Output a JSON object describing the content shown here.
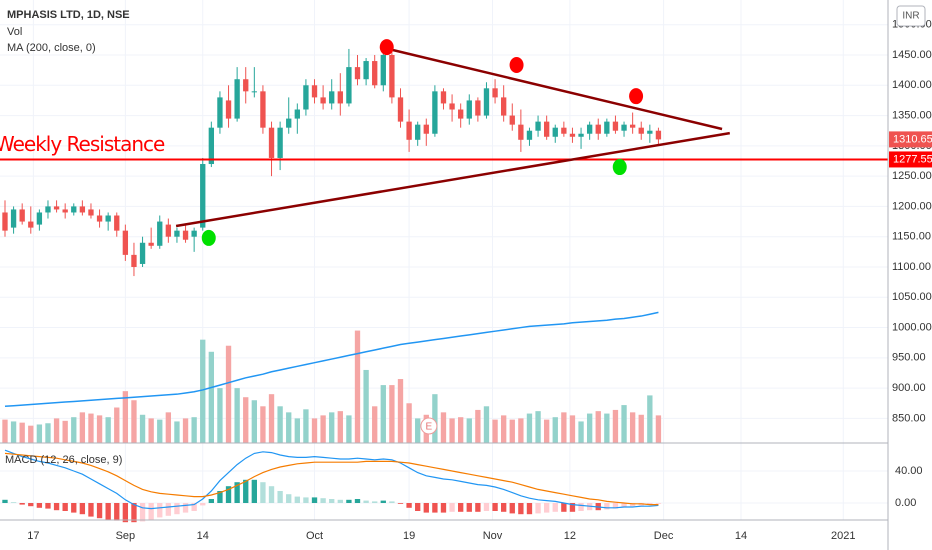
{
  "chart_data": {
    "type": "candlestick",
    "title": "MPHASIS LTD, 1D, NSE",
    "volume_label": "Vol",
    "ma_label": "MA (200, close, 0)",
    "macd_label": "MACD (12, 26, close, 9)",
    "currency_button": "INR",
    "up_color": "#26a69a",
    "down_color": "#ef5350",
    "volume_up_color": "#93d2cb",
    "volume_down_color": "#f5a5a4",
    "ma_color": "#2196f3",
    "macd_color": "#2196f3",
    "signal_color": "#f57c00",
    "hist_colors": [
      "#26a69a",
      "#b2dfdb",
      "#ef5350",
      "#ffcdd2"
    ],
    "grid": true,
    "xlim": [
      -0.58,
      102.7
    ],
    "xticks": [
      {
        "value": 3.3,
        "label": "17"
      },
      {
        "value": 14,
        "label": "Sep"
      },
      {
        "value": 23,
        "label": "14"
      },
      {
        "value": 36,
        "label": "Oct"
      },
      {
        "value": 47,
        "label": "19"
      },
      {
        "value": 56.7,
        "label": "Nov"
      },
      {
        "value": 65.7,
        "label": "12"
      },
      {
        "value": 76.6,
        "label": "Dec"
      },
      {
        "value": 85.6,
        "label": "14"
      },
      {
        "value": 97.5,
        "label": "2021"
      }
    ],
    "ylim": [
      809.4,
      1540.8
    ],
    "yticks": [
      {
        "value": 850,
        "label": "850.00"
      },
      {
        "value": 900,
        "label": "900.00"
      },
      {
        "value": 950,
        "label": "950.00"
      },
      {
        "value": 1000,
        "label": "1000.00"
      },
      {
        "value": 1050,
        "label": "1050.00"
      },
      {
        "value": 1100,
        "label": "1100.00"
      },
      {
        "value": 1150,
        "label": "1150.00"
      },
      {
        "value": 1200,
        "label": "1200.00"
      },
      {
        "value": 1250,
        "label": "1250.00"
      },
      {
        "value": 1300,
        "label": "1300.00"
      },
      {
        "value": 1350,
        "label": "1350.00"
      },
      {
        "value": 1400,
        "label": "1400.00"
      },
      {
        "value": 1450,
        "label": "1450.00"
      },
      {
        "value": 1500,
        "label": "1500.00"
      }
    ],
    "macd_ylim": [
      -21.25,
      75
    ],
    "macd_yticks": [
      {
        "value": 0,
        "label": "0.00"
      },
      {
        "value": 40,
        "label": "40.00"
      }
    ],
    "candles": [
      [
        1190,
        1210,
        1150,
        1160
      ],
      [
        1165,
        1200,
        1155,
        1195
      ],
      [
        1195,
        1205,
        1170,
        1175
      ],
      [
        1175,
        1200,
        1155,
        1165
      ],
      [
        1170,
        1195,
        1160,
        1190
      ],
      [
        1190,
        1210,
        1180,
        1200
      ],
      [
        1200,
        1210,
        1190,
        1195
      ],
      [
        1195,
        1205,
        1180,
        1190
      ],
      [
        1190,
        1205,
        1185,
        1200
      ],
      [
        1200,
        1210,
        1185,
        1190
      ],
      [
        1195,
        1205,
        1180,
        1185
      ],
      [
        1185,
        1195,
        1165,
        1175
      ],
      [
        1175,
        1190,
        1160,
        1185
      ],
      [
        1185,
        1190,
        1150,
        1160
      ],
      [
        1160,
        1170,
        1110,
        1120
      ],
      [
        1120,
        1140,
        1085,
        1100
      ],
      [
        1105,
        1150,
        1100,
        1140
      ],
      [
        1140,
        1165,
        1130,
        1135
      ],
      [
        1135,
        1185,
        1130,
        1175
      ],
      [
        1170,
        1180,
        1140,
        1150
      ],
      [
        1150,
        1165,
        1140,
        1160
      ],
      [
        1160,
        1170,
        1140,
        1145
      ],
      [
        1150,
        1165,
        1125,
        1160
      ],
      [
        1165,
        1280,
        1160,
        1270
      ],
      [
        1270,
        1340,
        1265,
        1330
      ],
      [
        1330,
        1390,
        1320,
        1380
      ],
      [
        1375,
        1400,
        1330,
        1345
      ],
      [
        1345,
        1430,
        1340,
        1410
      ],
      [
        1410,
        1430,
        1370,
        1390
      ],
      [
        1390,
        1430,
        1380,
        1390
      ],
      [
        1390,
        1400,
        1320,
        1330
      ],
      [
        1330,
        1340,
        1250,
        1280
      ],
      [
        1280,
        1340,
        1260,
        1330
      ],
      [
        1330,
        1380,
        1320,
        1345
      ],
      [
        1345,
        1370,
        1320,
        1360
      ],
      [
        1360,
        1410,
        1350,
        1400
      ],
      [
        1400,
        1410,
        1370,
        1380
      ],
      [
        1380,
        1400,
        1360,
        1370
      ],
      [
        1370,
        1410,
        1360,
        1390
      ],
      [
        1390,
        1420,
        1350,
        1370
      ],
      [
        1370,
        1460,
        1365,
        1430
      ],
      [
        1430,
        1450,
        1400,
        1410
      ],
      [
        1410,
        1445,
        1400,
        1440
      ],
      [
        1440,
        1450,
        1395,
        1400
      ],
      [
        1400,
        1465,
        1390,
        1450
      ],
      [
        1450,
        1460,
        1370,
        1380
      ],
      [
        1380,
        1395,
        1330,
        1340
      ],
      [
        1340,
        1360,
        1290,
        1310
      ],
      [
        1310,
        1340,
        1300,
        1335
      ],
      [
        1335,
        1345,
        1300,
        1320
      ],
      [
        1320,
        1400,
        1315,
        1390
      ],
      [
        1390,
        1395,
        1360,
        1370
      ],
      [
        1370,
        1385,
        1340,
        1360
      ],
      [
        1360,
        1370,
        1330,
        1345
      ],
      [
        1345,
        1385,
        1335,
        1375
      ],
      [
        1375,
        1380,
        1340,
        1350
      ],
      [
        1350,
        1405,
        1345,
        1395
      ],
      [
        1395,
        1410,
        1370,
        1380
      ],
      [
        1380,
        1400,
        1340,
        1350
      ],
      [
        1350,
        1370,
        1325,
        1335
      ],
      [
        1335,
        1360,
        1290,
        1310
      ],
      [
        1310,
        1330,
        1300,
        1325
      ],
      [
        1325,
        1350,
        1315,
        1340
      ],
      [
        1340,
        1350,
        1310,
        1315
      ],
      [
        1315,
        1335,
        1305,
        1330
      ],
      [
        1330,
        1340,
        1315,
        1320
      ],
      [
        1320,
        1330,
        1305,
        1315
      ],
      [
        1315,
        1330,
        1295,
        1320
      ],
      [
        1320,
        1340,
        1310,
        1335
      ],
      [
        1335,
        1345,
        1310,
        1320
      ],
      [
        1320,
        1345,
        1315,
        1340
      ],
      [
        1340,
        1350,
        1320,
        1325
      ],
      [
        1325,
        1340,
        1315,
        1335
      ],
      [
        1335,
        1355,
        1320,
        1330
      ],
      [
        1330,
        1340,
        1310,
        1320
      ],
      [
        1320,
        1335,
        1305,
        1325
      ],
      [
        1325,
        1330,
        1300,
        1310.65
      ]
    ],
    "volume": [
      848,
      845,
      843,
      838,
      840,
      842,
      850,
      846,
      852,
      860,
      858,
      855,
      852,
      868,
      895,
      880,
      856,
      850,
      848,
      860,
      845,
      850,
      852,
      980,
      960,
      900,
      970,
      900,
      885,
      880,
      870,
      890,
      870,
      860,
      850,
      865,
      850,
      855,
      860,
      862,
      855,
      995,
      930,
      870,
      905,
      905,
      915,
      875,
      850,
      856,
      890,
      860,
      850,
      852,
      850,
      864,
      870,
      848,
      855,
      848,
      850,
      858,
      862,
      848,
      852,
      860,
      855,
      845,
      858,
      862,
      858,
      864,
      872,
      860,
      856,
      888,
      855
    ],
    "ma": [
      870,
      871,
      872,
      873,
      874,
      875,
      876,
      877,
      878,
      879,
      880,
      881,
      882,
      883,
      884,
      885,
      886,
      887,
      888,
      889,
      890,
      892,
      894,
      897,
      901,
      905,
      909,
      913,
      917,
      920,
      923,
      927,
      930,
      933,
      936,
      939,
      942,
      945,
      948,
      951,
      954,
      957,
      960,
      963,
      966,
      969,
      972,
      974,
      976,
      978,
      980,
      982,
      984,
      986,
      988,
      990,
      992,
      994,
      996,
      998,
      1000,
      1002,
      1003,
      1004,
      1005,
      1006,
      1008,
      1009,
      1010,
      1011,
      1012,
      1014,
      1015,
      1017,
      1019,
      1022,
      1025
    ],
    "macd": [
      66,
      62,
      58,
      55,
      52,
      50,
      47,
      44,
      40,
      36,
      30,
      24,
      18,
      12,
      4,
      -2,
      -6,
      -7,
      -6,
      -5,
      -4,
      -3,
      -2,
      5,
      15,
      28,
      38,
      48,
      56,
      62,
      64,
      63,
      60,
      58,
      57,
      57,
      58,
      57,
      56,
      55,
      55,
      56,
      55,
      54,
      55,
      54,
      50,
      44,
      38,
      34,
      32,
      30,
      29,
      27,
      25,
      23,
      22,
      20,
      17,
      13,
      9,
      6,
      4,
      3,
      2,
      0,
      -2,
      -3,
      -4,
      -5,
      -6,
      -6,
      -5,
      -5,
      -4,
      -4,
      -3
    ],
    "signal": [
      62,
      61,
      60,
      59,
      58,
      57,
      56,
      54,
      52,
      50,
      47,
      43,
      39,
      34,
      28,
      22,
      17,
      14,
      12,
      11,
      10,
      9,
      8,
      8,
      10,
      13,
      17,
      22,
      27,
      33,
      38,
      42,
      45,
      47,
      49,
      50,
      51,
      51,
      51,
      51,
      51,
      51,
      52,
      52,
      52,
      52,
      51,
      50,
      48,
      46,
      44,
      42,
      40,
      38,
      36,
      34,
      32,
      30,
      28,
      26,
      23,
      20,
      17,
      15,
      13,
      11,
      9,
      7,
      5,
      4,
      2,
      1,
      0,
      -1,
      -1,
      -2,
      -2
    ],
    "histogram": [
      4,
      1,
      -2,
      -4,
      -6,
      -7,
      -9,
      -10,
      -12,
      -14,
      -17,
      -19,
      -21,
      -22,
      -24,
      -24,
      -23,
      -21,
      -18,
      -16,
      -14,
      -12,
      -10,
      -3,
      5,
      15,
      21,
      26,
      29,
      29,
      26,
      21,
      15,
      11,
      8,
      7,
      7,
      6,
      5,
      4,
      4,
      5,
      3,
      2,
      3,
      2,
      -1,
      -6,
      -10,
      -12,
      -12,
      -12,
      -11,
      -11,
      -11,
      -11,
      -10,
      -10,
      -11,
      -13,
      -14,
      -14,
      -13,
      -12,
      -11,
      -11,
      -11,
      -10,
      -9,
      -9,
      -8,
      -7,
      -5,
      -4,
      -3,
      -2,
      -1
    ],
    "resistance": {
      "text": "Weekly Resistance",
      "value": 1277.55,
      "label": "1277.55",
      "color": "#ff0000"
    },
    "last_price": {
      "value": 1310.65,
      "label": "1310.65"
    },
    "trendlines": [
      {
        "x": [
          43.7,
          83.4
        ],
        "y": [
          1463,
          1327.8
        ],
        "color": "#8b0000"
      },
      {
        "x": [
          19.9,
          84.3
        ],
        "y": [
          1167.7,
          1321
        ],
        "color": "#8b0000"
      }
    ],
    "markers": [
      {
        "x": 44.4,
        "y": 1463,
        "color": "#ff0000"
      },
      {
        "x": 59.5,
        "y": 1433.5,
        "color": "#ff0000"
      },
      {
        "x": 73.4,
        "y": 1382,
        "color": "#ff0000"
      },
      {
        "x": 71.5,
        "y": 1265,
        "color": "#00e000"
      },
      {
        "x": 23.7,
        "y": 1148,
        "color": "#00e000"
      }
    ],
    "earnings": {
      "text": "E",
      "x": 49.3
    }
  }
}
